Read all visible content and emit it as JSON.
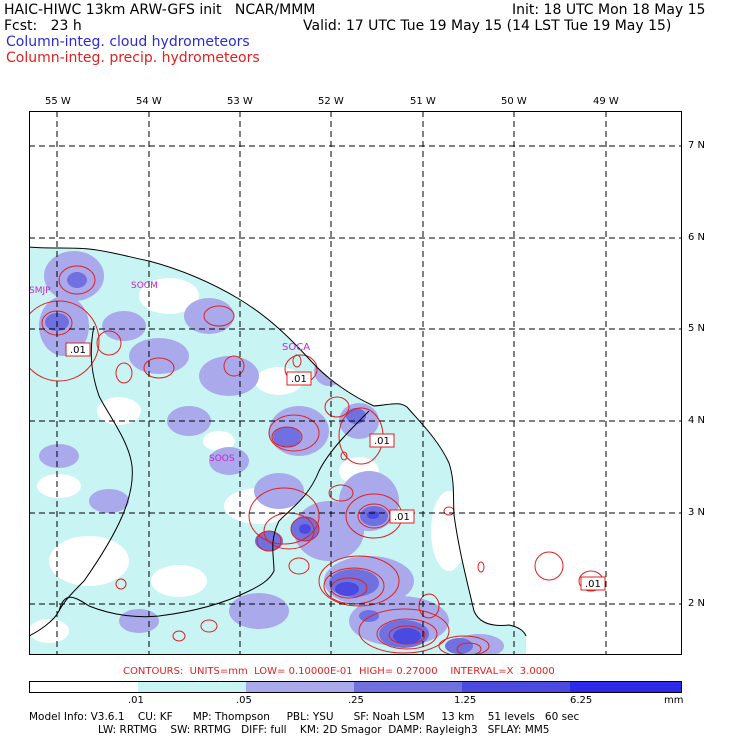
{
  "header": {
    "line1_left": "HAIC-HIWC 13km ARW-GFS init   NCAR/MMM",
    "line1_right": "Init: 18 UTC Mon 18 May 15",
    "line2_left": "Fcst:   23 h",
    "line2_right": "Valid: 17 UTC Tue 19 May 15 (14 LST Tue 19 May 15)",
    "field1": "Column-integ. cloud hydrometeors",
    "field2": "Column-integ. precip. hydrometeors"
  },
  "map": {
    "lon_labels": [
      "55 W",
      "54 W",
      "53 W",
      "52 W",
      "51 W",
      "50 W",
      "49 W"
    ],
    "lat_labels": [
      "7 N",
      "6 N",
      "5 N",
      "4 N",
      "3 N",
      "2 N"
    ],
    "stations": [
      "SMJP",
      "SOCM",
      "SOCA",
      "SOOS"
    ],
    "contour_labels": [
      ".01",
      ".01",
      ".01",
      ".01",
      ".01"
    ],
    "colors": {
      "cloud_1": "#c8f4f4",
      "cloud_2": "#a9a9ec",
      "cloud_3": "#7070e0",
      "cloud_4": "#4a4ae0",
      "contour": "#e02020",
      "station": "#cc22cc"
    }
  },
  "contour_info": "CONTOURS:  UNITS=mm  LOW= 0.10000E-01  HIGH= 0.27000    INTERVAL=X  3.0000",
  "colorbar": {
    "labels": [
      ".01",
      ".05",
      ".25",
      "1.25",
      "6.25"
    ],
    "units": "mm",
    "colors": [
      "#ffffff",
      "#c8f4f4",
      "#a9a9ec",
      "#7070e0",
      "#4a4ae0",
      "#2a2ae8",
      "#1010e8"
    ]
  },
  "footer": {
    "line1": "Model Info: V3.6.1    CU: KF      MP: Thompson     PBL: YSU      SF: Noah LSM     13 km    51 levels   60 sec",
    "line2": "LW: RRTMG    SW: RRTMG   DIFF: full    KM: 2D Smagor  DAMP: Rayleigh3   SFLAY: MM5"
  }
}
